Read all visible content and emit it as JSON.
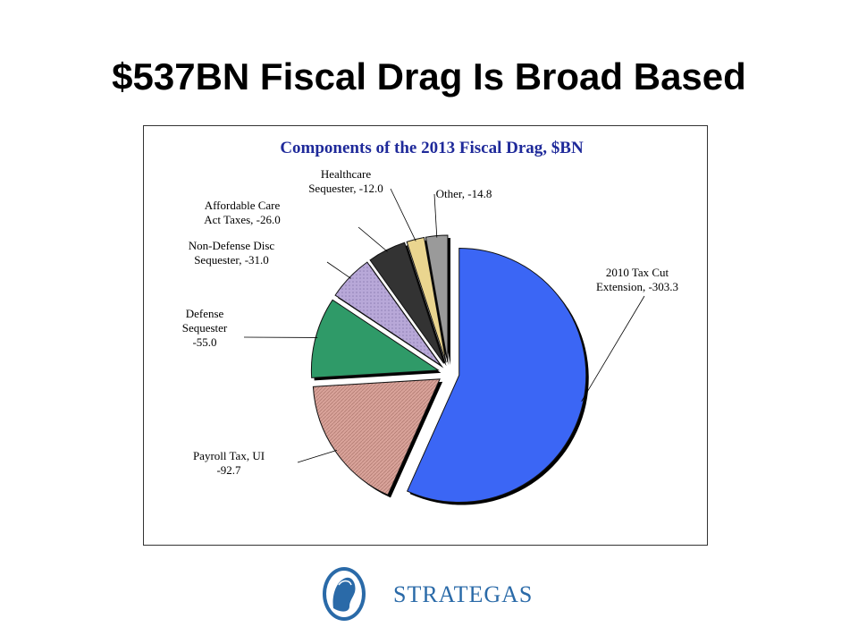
{
  "slide": {
    "title": "$537BN Fiscal Drag Is Broad Based"
  },
  "chart_data": {
    "type": "pie",
    "title": "Components of the 2013 Fiscal Drag, $BN",
    "slices": [
      {
        "label_lines": [
          "2010 Tax Cut",
          "Extension, -303.3"
        ],
        "value": -303.3,
        "color": "#3b66f5"
      },
      {
        "label_lines": [
          "Payroll Tax, UI",
          "-92.7"
        ],
        "value": -92.7,
        "color": "#d9a39a"
      },
      {
        "label_lines": [
          "Defense",
          "Sequester",
          "-55.0"
        ],
        "value": -55.0,
        "color": "#2f9a68"
      },
      {
        "label_lines": [
          "Non-Defense Disc",
          "Sequester, -31.0"
        ],
        "value": -31.0,
        "color": "#b8a8d8"
      },
      {
        "label_lines": [
          "Affordable Care",
          "Act Taxes, -26.0"
        ],
        "value": -26.0,
        "color": "#333333"
      },
      {
        "label_lines": [
          "Healthcare",
          "Sequester, -12.0"
        ],
        "value": -12.0,
        "color": "#ead58f"
      },
      {
        "label_lines": [
          "Other, -14.8"
        ],
        "value": -14.8,
        "color": "#9a9a9a"
      }
    ],
    "legend": "none"
  },
  "logo": {
    "text": "STRATEGAS",
    "colors": {
      "text": "#2a6aa8",
      "emblem": "#2a6aa8"
    },
    "icon": "helmeted-head-emblem"
  }
}
